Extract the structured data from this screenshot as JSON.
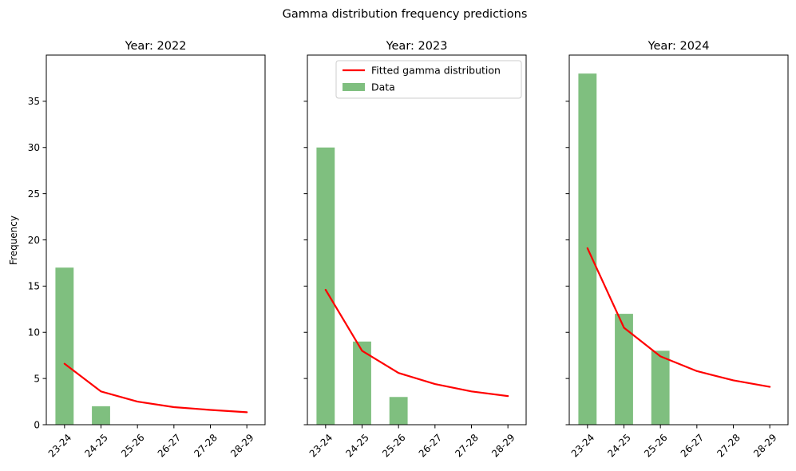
{
  "chart_data": {
    "suptitle": "Gamma distribution frequency predictions",
    "ylabel": "Frequency",
    "ylim": [
      0,
      40
    ],
    "yticks": [
      0,
      5,
      10,
      15,
      20,
      25,
      30,
      35
    ],
    "categories": [
      "23-24",
      "24-25",
      "25-26",
      "26-27",
      "27-28",
      "28-29"
    ],
    "legend": {
      "placement": "upper-right",
      "panel": 1,
      "entries": [
        {
          "label": "Fitted gamma distribution",
          "kind": "line",
          "color": "#ff0000"
        },
        {
          "label": "Data",
          "kind": "bar",
          "color": "#7fbf7f"
        }
      ]
    },
    "panels": [
      {
        "type": "bar+line",
        "title": "Year: 2022",
        "bars": [
          17,
          2,
          0,
          0,
          0,
          0
        ],
        "fit": [
          6.6,
          3.6,
          2.5,
          1.9,
          1.6,
          1.35
        ]
      },
      {
        "type": "bar+line",
        "title": "Year: 2023",
        "bars": [
          30,
          9,
          3,
          0,
          0,
          0
        ],
        "fit": [
          14.6,
          8.0,
          5.6,
          4.4,
          3.6,
          3.1
        ]
      },
      {
        "type": "bar+line",
        "title": "Year: 2024",
        "bars": [
          38,
          12,
          8,
          0,
          0,
          0
        ],
        "fit": [
          19.1,
          10.5,
          7.4,
          5.8,
          4.8,
          4.1
        ]
      }
    ]
  },
  "colors": {
    "bar": "#7fbf7f",
    "fit_line": "#ff0000",
    "axes": "#000000"
  }
}
